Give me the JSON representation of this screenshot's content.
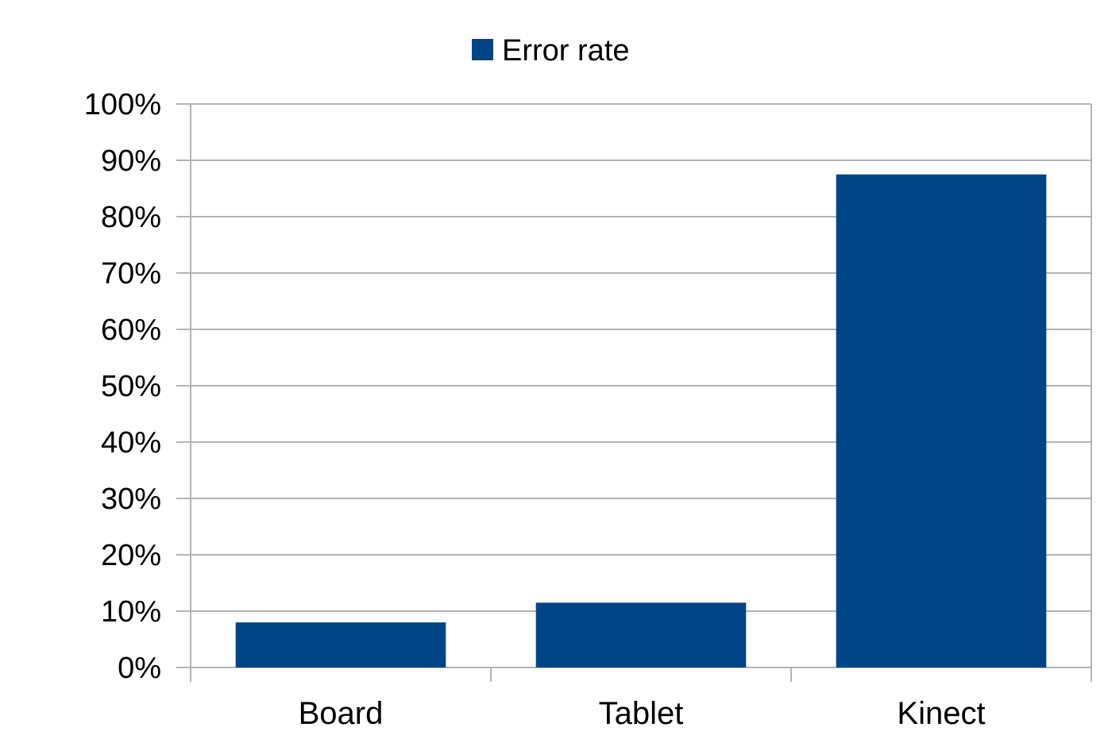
{
  "chart_data": {
    "type": "bar",
    "categories": [
      "Board",
      "Tablet",
      "Kinect"
    ],
    "series": [
      {
        "name": "Error rate",
        "values": [
          8,
          11.5,
          87.5
        ],
        "color": "#004586"
      }
    ],
    "y_tick_labels": [
      "0%",
      "10%",
      "20%",
      "30%",
      "40%",
      "50%",
      "60%",
      "70%",
      "80%",
      "90%",
      "100%"
    ],
    "ylim": [
      0,
      100
    ],
    "y_unit": "%",
    "grid": true,
    "legend_position": "top-center",
    "colors": {
      "grid": "#b3b3b3",
      "axis": "#b3b3b3",
      "bar": "#004586"
    }
  }
}
